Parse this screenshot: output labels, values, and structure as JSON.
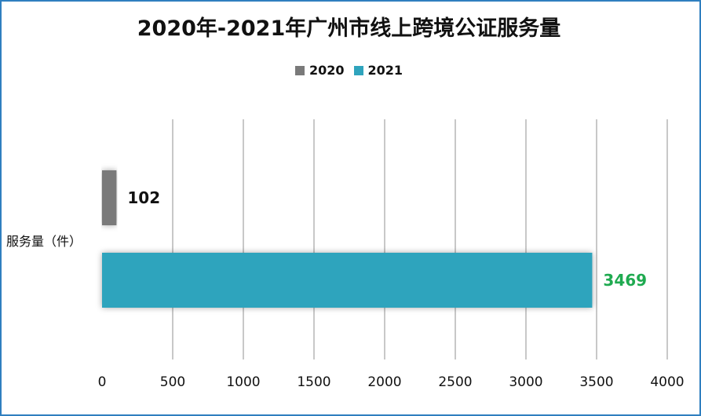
{
  "chart_data": {
    "type": "bar",
    "orientation": "horizontal",
    "title": "2020年-2021年广州市线上跨境公证服务量",
    "categories": [
      "服务量（件）"
    ],
    "series": [
      {
        "name": "2020",
        "values": [
          102
        ],
        "color": "#7a7a7a",
        "label_color": "#111111"
      },
      {
        "name": "2021",
        "values": [
          3469
        ],
        "color": "#2fa4bd",
        "label_color": "#1faa50"
      }
    ],
    "xlim": [
      0,
      4000
    ],
    "xticks": [
      0,
      500,
      1000,
      1500,
      2000,
      2500,
      3000,
      3500,
      4000
    ],
    "grid": true,
    "legend_position": "top"
  },
  "frame_color": "#2f7fbf"
}
